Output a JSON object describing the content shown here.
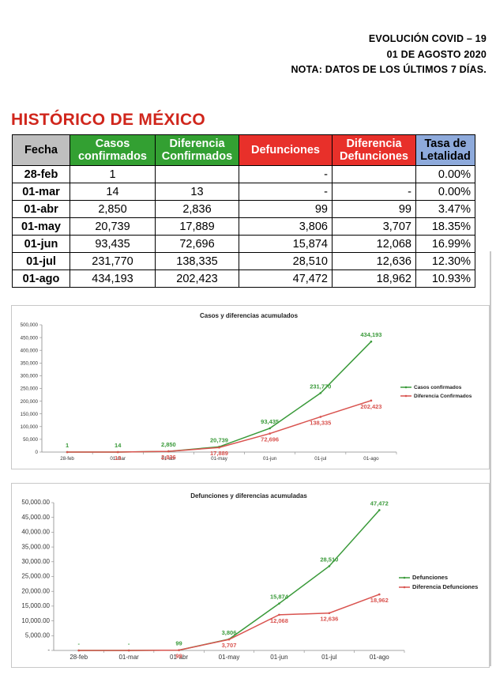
{
  "header": {
    "line1": "EVOLUCIÓN COVID – 19",
    "line2": "01 DE AGOSTO 2020",
    "line3": "NOTA: DATOS DE LOS ÚLTIMOS 7 DÍAS."
  },
  "table_title": "HISTÓRICO DE MÉXICO",
  "table": {
    "headers": [
      "Fecha",
      "Casos confirmados",
      "Diferencia Confirmados",
      "Defunciones",
      "Diferencia Defunciones",
      "Tasa de Letalidad"
    ],
    "rows": [
      [
        "28-feb",
        "1",
        "",
        "-",
        "",
        "0.00%"
      ],
      [
        "01-mar",
        "14",
        "13",
        "-",
        "-",
        "0.00%"
      ],
      [
        "01-abr",
        "2,850",
        "2,836",
        "99",
        "99",
        "3.47%"
      ],
      [
        "01-may",
        "20,739",
        "17,889",
        "3,806",
        "3,707",
        "18.35%"
      ],
      [
        "01-jun",
        "93,435",
        "72,696",
        "15,874",
        "12,068",
        "16.99%"
      ],
      [
        "01-jul",
        "231,770",
        "138,335",
        "28,510",
        "12,636",
        "12.30%"
      ],
      [
        "01-ago",
        "434,193",
        "202,423",
        "47,472",
        "18,962",
        "10.93%"
      ]
    ]
  },
  "colors": {
    "green": "#3a9a3a",
    "red": "#d9534f",
    "header_gray": "#bfbfbf",
    "header_green": "#33a032",
    "header_red": "#e8302a",
    "header_blue": "#8eaadb",
    "title_red": "#d0261c"
  },
  "chart_data": [
    {
      "type": "line",
      "title": "Casos y diferencias acumulados",
      "categories": [
        "28-feb",
        "01-mar",
        "01-abr",
        "01-may",
        "01-jun",
        "01-jul",
        "01-ago"
      ],
      "ylim": [
        0,
        500000
      ],
      "yticks": [
        "0",
        "50,000",
        "100,000",
        "150,000",
        "200,000",
        "250,000",
        "300,000",
        "350,000",
        "400,000",
        "450,000",
        "500,000"
      ],
      "legend_position": "right",
      "series": [
        {
          "name": "Casos confirmados",
          "color": "#3a9a3a",
          "values": [
            1,
            14,
            2850,
            20739,
            93435,
            231770,
            434193
          ],
          "labels": [
            "1",
            "14",
            "2,850",
            "20,739",
            "93,435",
            "231,770",
            "434,193"
          ]
        },
        {
          "name": "Diferencia Confirmados",
          "color": "#d9534f",
          "values": [
            0,
            13,
            2836,
            17889,
            72696,
            138335,
            202423
          ],
          "labels": [
            "",
            "13",
            "2,836",
            "17,889",
            "72,696",
            "138,335",
            "202,423"
          ]
        }
      ]
    },
    {
      "type": "line",
      "title": "Defunciones y diferencias acumuladas",
      "categories": [
        "28-feb",
        "01-mar",
        "01-abr",
        "01-may",
        "01-jun",
        "01-jul",
        "01-ago"
      ],
      "ylim": [
        0,
        50000
      ],
      "yticks": [
        "-",
        "5,000.00",
        "10,000.00",
        "15,000.00",
        "20,000.00",
        "25,000.00",
        "30,000.00",
        "35,000.00",
        "40,000.00",
        "45,000.00",
        "50,000.00"
      ],
      "legend_position": "right",
      "series": [
        {
          "name": "Defunciones",
          "color": "#3a9a3a",
          "values": [
            0,
            0,
            99,
            3806,
            15874,
            28510,
            47472
          ],
          "labels": [
            "-",
            "-",
            "99",
            "3,806",
            "15,874",
            "28,510",
            "47,472"
          ]
        },
        {
          "name": "Diferencia Defunciones",
          "color": "#d9534f",
          "values": [
            0,
            0,
            99,
            3707,
            12068,
            12636,
            18962
          ],
          "labels": [
            "",
            "",
            "99",
            "3,707",
            "12,068",
            "12,636",
            "18,962"
          ]
        }
      ]
    }
  ]
}
